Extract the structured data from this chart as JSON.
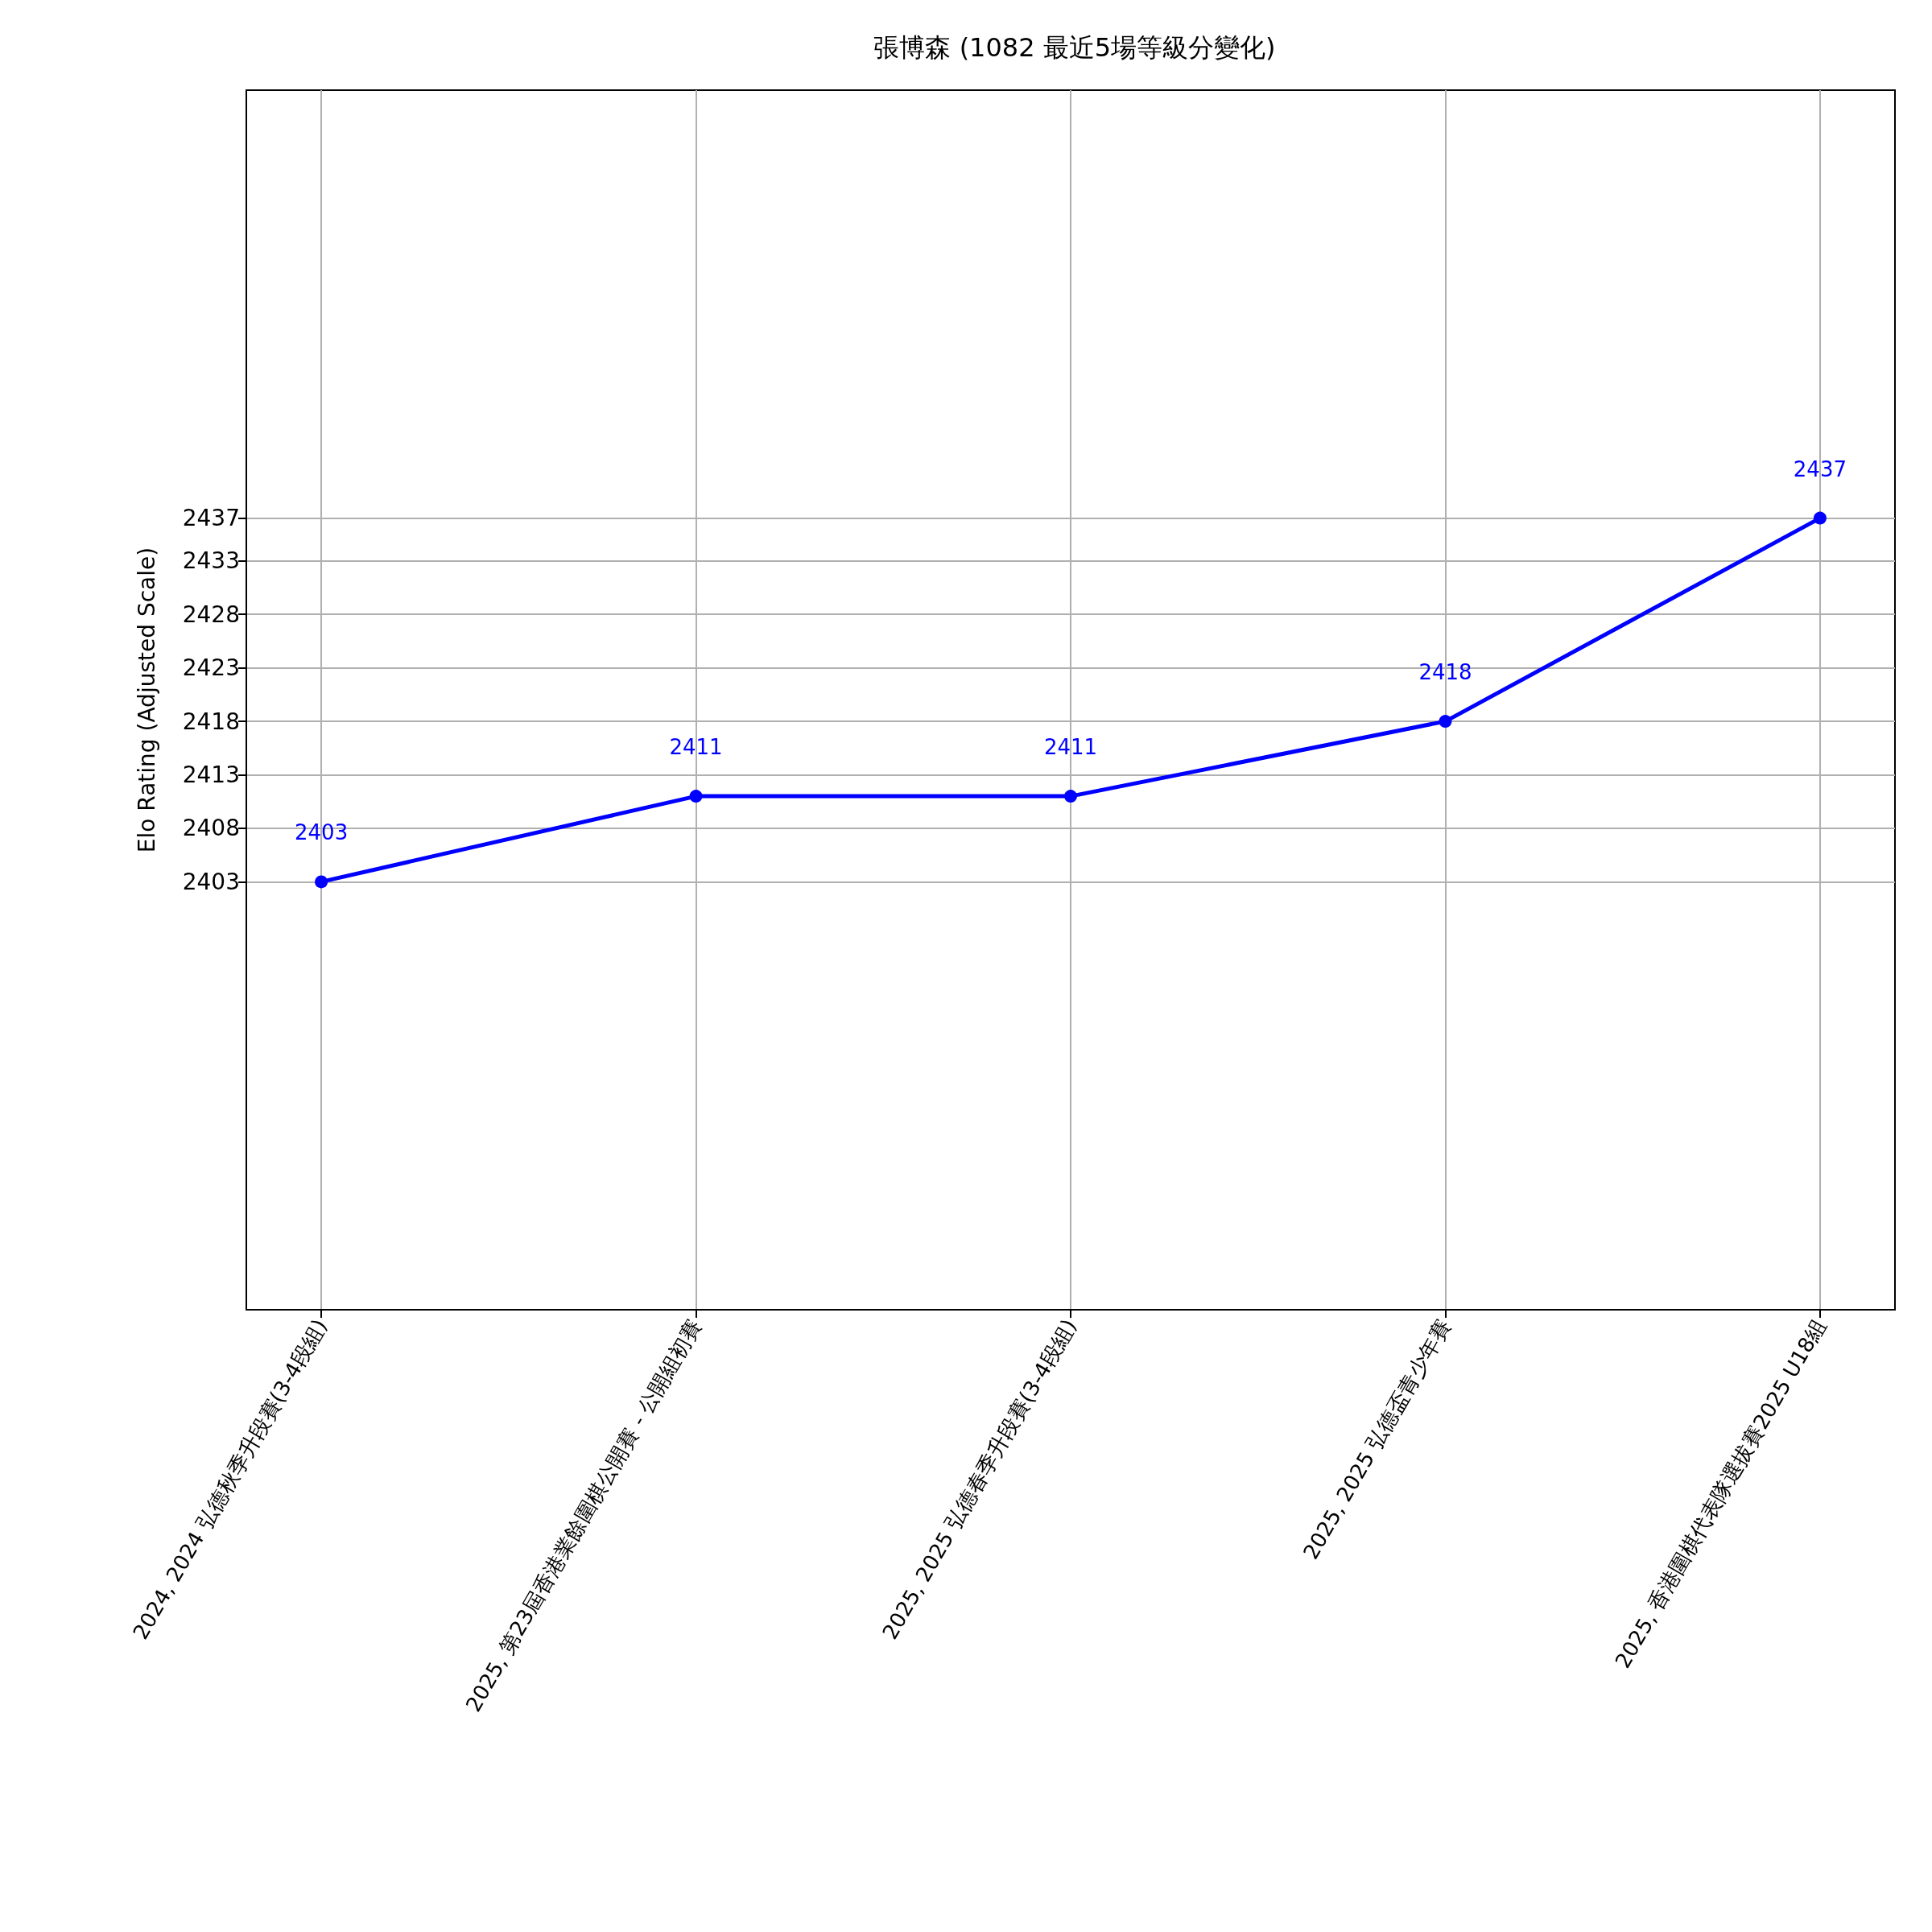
{
  "chart_data": {
    "type": "line",
    "title": "張博森 (1082 最近5場等級分變化)",
    "ylabel": "Elo Rating (Adjusted Scale)",
    "categories": [
      "2024, 2024 弘德秋季升段賽(3-4段組)",
      "2025, 第23屆香港業餘圍棋公開賽 - 公開組初賽",
      "2025, 2025 弘德春季升段賽(3-4段組)",
      "2025, 2025 弘德盃青少年賽",
      "2025, 香港圍棋代表隊選拔賽2025 U18組"
    ],
    "series": [
      {
        "color": "#0000ff",
        "values": [
          2403,
          2411,
          2411,
          2418,
          2437
        ]
      }
    ],
    "ylim": [
      2363,
      2477
    ],
    "yticks": [
      2403,
      2408,
      2413,
      2418,
      2423,
      2428,
      2433,
      2437
    ],
    "grid": true,
    "marker": "circle",
    "line_style": "solid",
    "data_labels": true
  }
}
